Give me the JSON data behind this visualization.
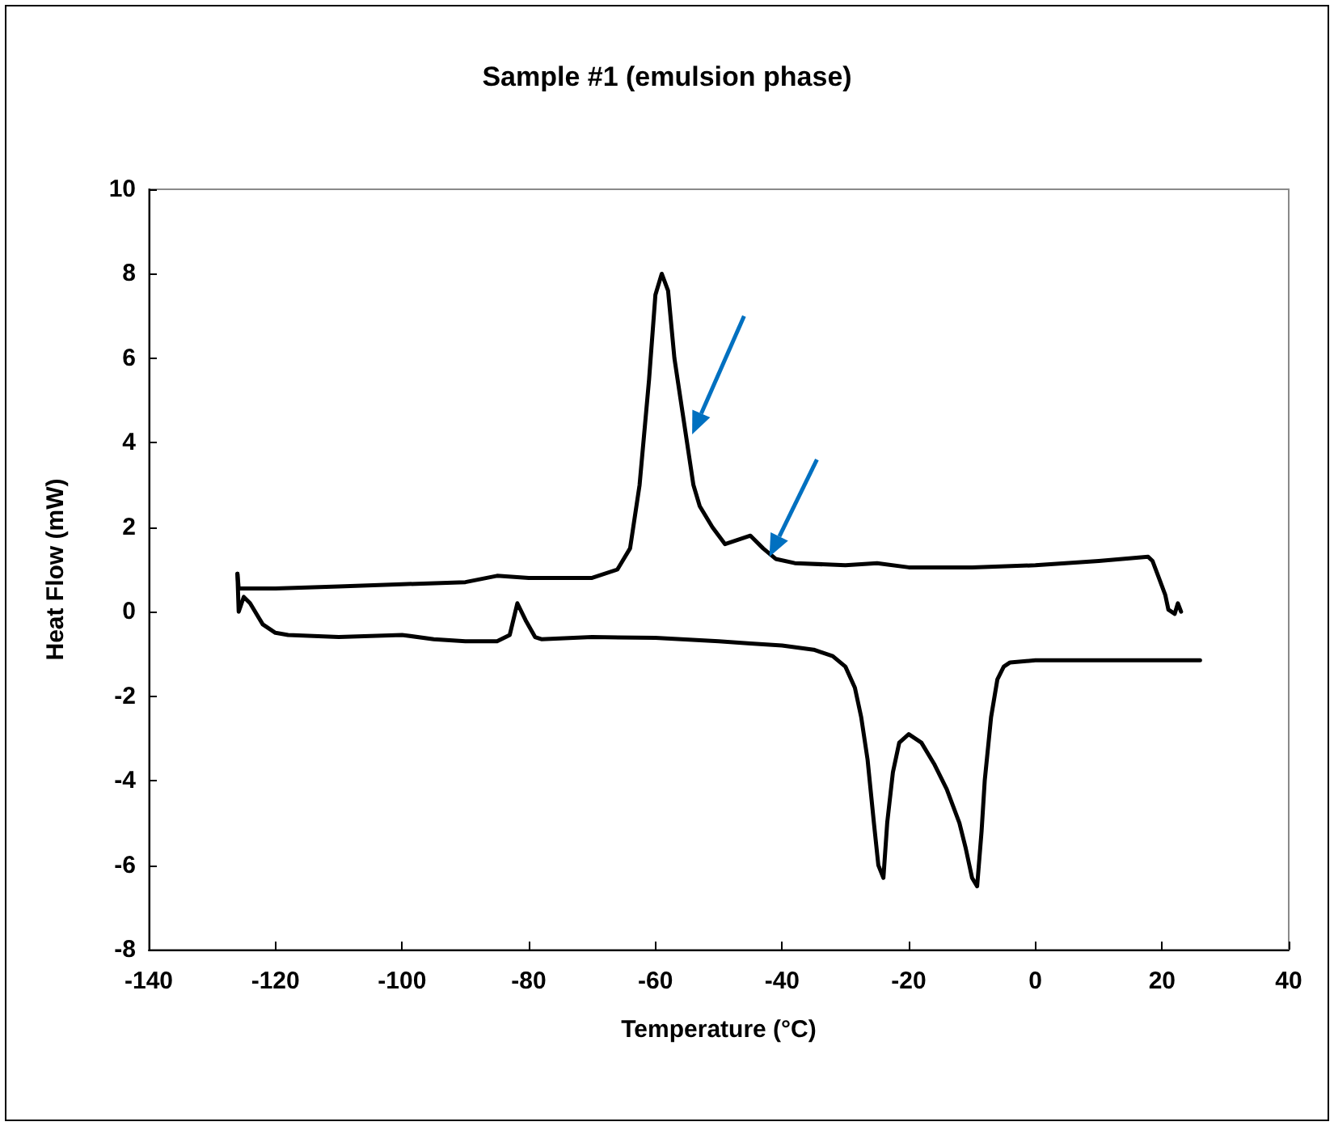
{
  "chart_data": {
    "type": "line",
    "title": "Sample #1 (emulsion phase)",
    "xlabel": "Temperature (°C)",
    "ylabel": "Heat Flow (mW)",
    "xlim": [
      -140,
      40
    ],
    "xticks": [
      -140,
      -120,
      -100,
      -80,
      -60,
      -40,
      -20,
      0,
      20,
      40
    ],
    "ylim": [
      -8,
      10
    ],
    "yticks": [
      -8,
      -6,
      -4,
      -2,
      0,
      2,
      4,
      6,
      8,
      10
    ],
    "grid": false,
    "marker": "none",
    "line_style": "solid",
    "series": [
      {
        "color": "#000000",
        "x": [
          -126,
          -125.8,
          -125,
          -120,
          -110,
          -100,
          -90,
          -85,
          -80,
          -70,
          -66,
          -64,
          -62.5,
          -61,
          -60,
          -59,
          -58,
          -57,
          -56,
          -55,
          -54,
          -53,
          -51,
          -49,
          -47,
          -45,
          -43,
          -41,
          -38,
          -30,
          -25,
          -20,
          -10,
          0,
          10,
          17.8,
          18.5,
          19.5,
          20.5,
          21,
          22,
          22.5,
          23
        ],
        "values": [
          0.9,
          0.55,
          0.55,
          0.55,
          0.6,
          0.65,
          0.7,
          0.85,
          0.8,
          0.8,
          1.0,
          1.5,
          3,
          5.5,
          7.5,
          8.0,
          7.6,
          6,
          5,
          4,
          3,
          2.5,
          2.0,
          1.6,
          1.7,
          1.8,
          1.5,
          1.25,
          1.15,
          1.1,
          1.15,
          1.05,
          1.05,
          1.1,
          1.2,
          1.3,
          1.2,
          0.8,
          0.4,
          0.05,
          -0.05,
          0.2,
          0.0
        ]
      },
      {
        "color": "#000000",
        "x": [
          -126,
          -125.8,
          -125,
          -124,
          -122,
          -120,
          -118,
          -110,
          -100,
          -95,
          -90,
          -85,
          -83,
          -81.8,
          -80.5,
          -79,
          -78,
          -70,
          -60,
          -50,
          -45,
          -40,
          -35,
          -32,
          -30,
          -28.5,
          -27.5,
          -26.5,
          -25.5,
          -24.8,
          -24,
          -23.4,
          -22.5,
          -21.5,
          -20,
          -18,
          -16,
          -14,
          -12,
          -11,
          -10,
          -9.2,
          -8.5,
          -8,
          -7,
          -6,
          -5,
          -4,
          0,
          10,
          20,
          26
        ],
        "values": [
          0.9,
          0.0,
          0.35,
          0.2,
          -0.3,
          -0.5,
          -0.55,
          -0.6,
          -0.55,
          -0.65,
          -0.7,
          -0.7,
          -0.55,
          0.2,
          -0.2,
          -0.6,
          -0.65,
          -0.6,
          -0.62,
          -0.7,
          -0.75,
          -0.8,
          -0.9,
          -1.05,
          -1.3,
          -1.8,
          -2.5,
          -3.5,
          -5,
          -6,
          -6.3,
          -5,
          -3.8,
          -3.1,
          -2.9,
          -3.1,
          -3.6,
          -4.2,
          -5,
          -5.6,
          -6.3,
          -6.5,
          -5.2,
          -4,
          -2.5,
          -1.6,
          -1.3,
          -1.2,
          -1.15,
          -1.15,
          -1.15,
          -1.15
        ]
      }
    ]
  }
}
